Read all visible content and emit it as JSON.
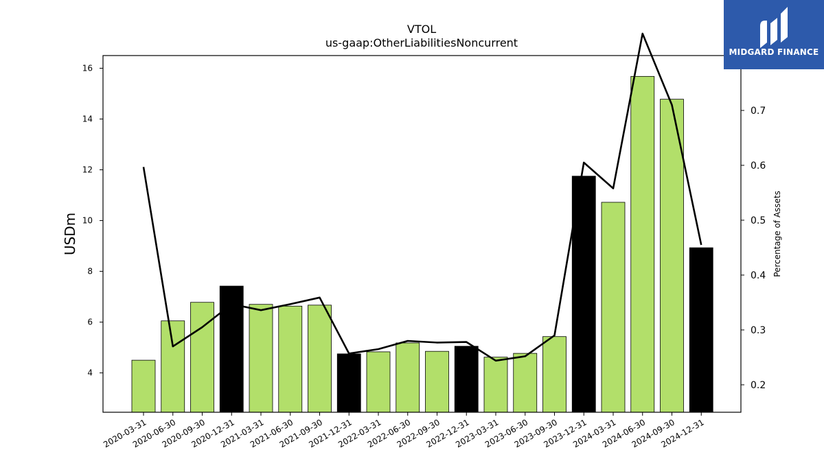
{
  "chart_data": {
    "type": "bar",
    "title": "VTOL",
    "subtitle": "us-gaap:OtherLiabilitiesNoncurrent",
    "ylabel": "USDm",
    "y2label": "Percentage of Assets",
    "ylim": [
      2.45,
      16.5
    ],
    "y2lim": [
      0.15,
      0.8
    ],
    "yticks": [
      "4",
      "6",
      "8",
      "10",
      "12",
      "14",
      "16"
    ],
    "y2ticks": [
      "0.2",
      "0.3",
      "0.4",
      "0.5",
      "0.6",
      "0.7"
    ],
    "categories": [
      "2020-03-31",
      "2020-06-30",
      "2020-09-30",
      "2020-12-31",
      "2021-03-31",
      "2021-06-30",
      "2021-09-30",
      "2021-12-31",
      "2022-03-31",
      "2022-06-30",
      "2022-09-30",
      "2022-12-31",
      "2023-03-31",
      "2023-06-30",
      "2023-09-30",
      "2023-12-31",
      "2024-03-31",
      "2024-06-30",
      "2024-09-30",
      "2024-12-31"
    ],
    "series": [
      {
        "type": "bar",
        "values": [
          4.5,
          6.05,
          6.78,
          7.42,
          6.7,
          6.63,
          6.67,
          4.75,
          4.83,
          5.18,
          4.85,
          5.05,
          4.62,
          4.77,
          5.43,
          11.75,
          10.72,
          15.68,
          14.78,
          8.93
        ],
        "colors": [
          "#b2df6a",
          "#b2df6a",
          "#b2df6a",
          "#000000",
          "#b2df6a",
          "#b2df6a",
          "#b2df6a",
          "#000000",
          "#b2df6a",
          "#b2df6a",
          "#b2df6a",
          "#000000",
          "#b2df6a",
          "#b2df6a",
          "#b2df6a",
          "#000000",
          "#b2df6a",
          "#b2df6a",
          "#b2df6a",
          "#000000"
        ]
      },
      {
        "type": "line",
        "axis": "right",
        "color": "#000000",
        "values": [
          0.597,
          0.27,
          0.305,
          0.347,
          0.336,
          0.347,
          0.359,
          0.257,
          0.265,
          0.28,
          0.277,
          0.278,
          0.244,
          0.252,
          0.29,
          0.605,
          0.558,
          0.84,
          0.71,
          0.455
        ]
      }
    ],
    "grid": false,
    "legend": "none"
  },
  "logo": {
    "text": "MIDGARD FINANCE",
    "color": "#2d5aab"
  }
}
